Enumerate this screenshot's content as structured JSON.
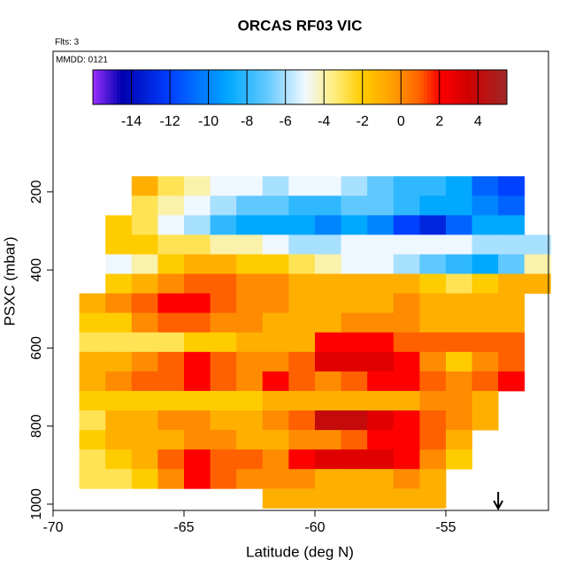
{
  "chart_data": {
    "type": "heatmap",
    "title": "ORCAS RF03 VIC",
    "subtitle": "Flts: 3",
    "annotation": "MMDD: 0121",
    "x_label": "Latitude (deg N)",
    "y_label": "PSXC (mbar)",
    "xlim": [
      -70,
      -51.08
    ],
    "xticks": [
      -70,
      -65,
      -60,
      -55
    ],
    "ylim": [
      1016,
      -160
    ],
    "yticks": [
      200,
      400,
      600,
      800,
      1000
    ],
    "y_bins": [
      160,
      210,
      260,
      310,
      360,
      410,
      460,
      510,
      560,
      610,
      660,
      710,
      760,
      810,
      860,
      910,
      960,
      1010
    ],
    "rows": [
      {
        "lat_range": [
          -67,
          -52
        ],
        "values": [
          -1,
          -3,
          -4,
          -5,
          -5,
          -6,
          -5,
          -5,
          -6,
          -7,
          -8,
          -8,
          -9,
          -11,
          -12
        ]
      },
      {
        "lat_range": [
          -67,
          -52
        ],
        "values": [
          -3,
          -4,
          -5,
          -6,
          -7,
          -7,
          -8,
          -8,
          -7,
          -7,
          -8,
          -9,
          -9,
          -10,
          -11
        ]
      },
      {
        "lat_range": [
          -68,
          -52
        ],
        "values": [
          -2,
          -3,
          -5,
          -6,
          -8,
          -9,
          -9,
          -9,
          -10,
          -9,
          -10,
          -12,
          -13,
          -11,
          -9,
          -9
        ]
      },
      {
        "lat_range": [
          -68,
          -51
        ],
        "values": [
          -2,
          -2,
          -3,
          -3,
          -4,
          -4,
          -5,
          -6,
          -6,
          -5,
          -5,
          -5,
          -5,
          -5,
          -6,
          -6,
          -6
        ]
      },
      {
        "lat_range": [
          -68,
          -51
        ],
        "values": [
          -5,
          -4,
          -2,
          -1,
          -1,
          -2,
          -2,
          -3,
          -4,
          -5,
          -5,
          -6,
          -7,
          -8,
          -9,
          -7,
          -4
        ]
      },
      {
        "lat_range": [
          -68,
          -51
        ],
        "values": [
          -2,
          -1,
          0,
          1,
          1,
          0,
          0,
          -1,
          -1,
          -1,
          -1,
          -1,
          -2,
          -3,
          -2,
          -1,
          -1
        ]
      },
      {
        "lat_range": [
          -69,
          -52
        ],
        "values": [
          -1,
          0,
          1,
          2,
          2,
          1,
          0,
          0,
          -1,
          -1,
          -1,
          -1,
          0,
          -1,
          -1,
          -1,
          -1
        ]
      },
      {
        "lat_range": [
          -69,
          -52
        ],
        "values": [
          -2,
          -2,
          0,
          1,
          1,
          0,
          0,
          -1,
          -1,
          -1,
          0,
          0,
          0,
          -1,
          -1,
          -1,
          -1
        ]
      },
      {
        "lat_range": [
          -69,
          -52
        ],
        "values": [
          -3,
          -3,
          -3,
          -3,
          -2,
          -2,
          -1,
          -1,
          -1,
          2,
          2,
          2,
          1,
          1,
          1,
          1,
          1
        ]
      },
      {
        "lat_range": [
          -69,
          -52
        ],
        "values": [
          -1,
          -1,
          0,
          1,
          2,
          1,
          0,
          0,
          1,
          3,
          3,
          3,
          2,
          0,
          -2,
          0,
          1
        ]
      },
      {
        "lat_range": [
          -69,
          -52
        ],
        "values": [
          -1,
          0,
          1,
          1,
          2,
          1,
          0,
          2,
          1,
          0,
          1,
          2,
          2,
          1,
          0,
          1,
          2
        ]
      },
      {
        "lat_range": [
          -69,
          -53
        ],
        "values": [
          -2,
          -2,
          -2,
          -2,
          -2,
          -2,
          -2,
          -1,
          -1,
          -1,
          -1,
          -1,
          -1,
          0,
          0,
          -1
        ]
      },
      {
        "lat_range": [
          -69,
          -53
        ],
        "values": [
          -3,
          -1,
          -1,
          0,
          0,
          -1,
          -1,
          0,
          1,
          4,
          4,
          3,
          2,
          1,
          0,
          -1
        ]
      },
      {
        "lat_range": [
          -69,
          -54
        ],
        "values": [
          -2,
          -1,
          -1,
          -1,
          0,
          0,
          -1,
          -1,
          0,
          0,
          1,
          2,
          2,
          1,
          -1
        ]
      },
      {
        "lat_range": [
          -69,
          -54
        ],
        "values": [
          -3,
          -2,
          -1,
          1,
          2,
          1,
          1,
          0,
          2,
          3,
          3,
          3,
          2,
          0,
          -2
        ]
      },
      {
        "lat_range": [
          -69,
          -55
        ],
        "values": [
          -3,
          -3,
          -2,
          0,
          2,
          1,
          0,
          0,
          0,
          -1,
          -1,
          -1,
          0,
          -1
        ]
      },
      {
        "lat_range": [
          -62,
          -55
        ],
        "values": [
          -1,
          -1,
          -1,
          -1,
          -1,
          -1,
          -1
        ]
      }
    ],
    "colorbar_range": [
      -16,
      5.5
    ],
    "colorbar_ticks": [
      -14,
      -12,
      -10,
      -8,
      -6,
      -4,
      -2,
      0,
      2,
      4
    ],
    "colorscale": [
      {
        "value": -16,
        "color": "#9b30ff"
      },
      {
        "value": -14.5,
        "color": "#0000b0"
      },
      {
        "value": -12,
        "color": "#0040ff"
      },
      {
        "value": -9,
        "color": "#00a8ff"
      },
      {
        "value": -7,
        "color": "#60c8ff"
      },
      {
        "value": -5,
        "color": "#f0f8ff"
      },
      {
        "value": -3.5,
        "color": "#ffee80"
      },
      {
        "value": -2,
        "color": "#ffcc00"
      },
      {
        "value": -0.5,
        "color": "#ffa000"
      },
      {
        "value": 1,
        "color": "#ff6000"
      },
      {
        "value": 2,
        "color": "#ff0000"
      },
      {
        "value": 3.5,
        "color": "#d00000"
      },
      {
        "value": 5.5,
        "color": "#a02828"
      }
    ],
    "marker_lat": -53
  }
}
